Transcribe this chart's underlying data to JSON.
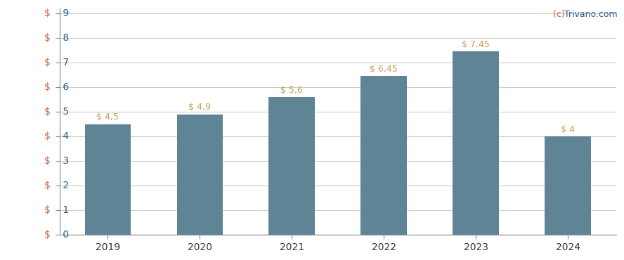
{
  "categories": [
    "2019",
    "2020",
    "2021",
    "2022",
    "2023",
    "2024"
  ],
  "values": [
    4.5,
    4.9,
    5.6,
    6.45,
    7.45,
    4.0
  ],
  "labels": [
    "$ 4,5",
    "$ 4,9",
    "$ 5,6",
    "$ 6,45",
    "$ 7,45",
    "$ 4"
  ],
  "bar_color": "#5f8496",
  "background_color": "#ffffff",
  "grid_color": "#cccccc",
  "ylim": [
    0,
    9.2
  ],
  "yticks": [
    0,
    1,
    2,
    3,
    4,
    5,
    6,
    7,
    8,
    9
  ],
  "ytick_labels": [
    "$ 0",
    "$ 1",
    "$ 2",
    "$ 3",
    "$ 4",
    "$ 5",
    "$ 6",
    "$ 7",
    "$ 8",
    "$ 9"
  ],
  "label_color": "#c8a050",
  "dollar_color": "#c8643c",
  "number_color": "#2a5a8a",
  "watermark_c_color": "#c8643c",
  "watermark_text_color": "#2a5a8a",
  "axis_color": "#888888",
  "bar_width": 0.5
}
